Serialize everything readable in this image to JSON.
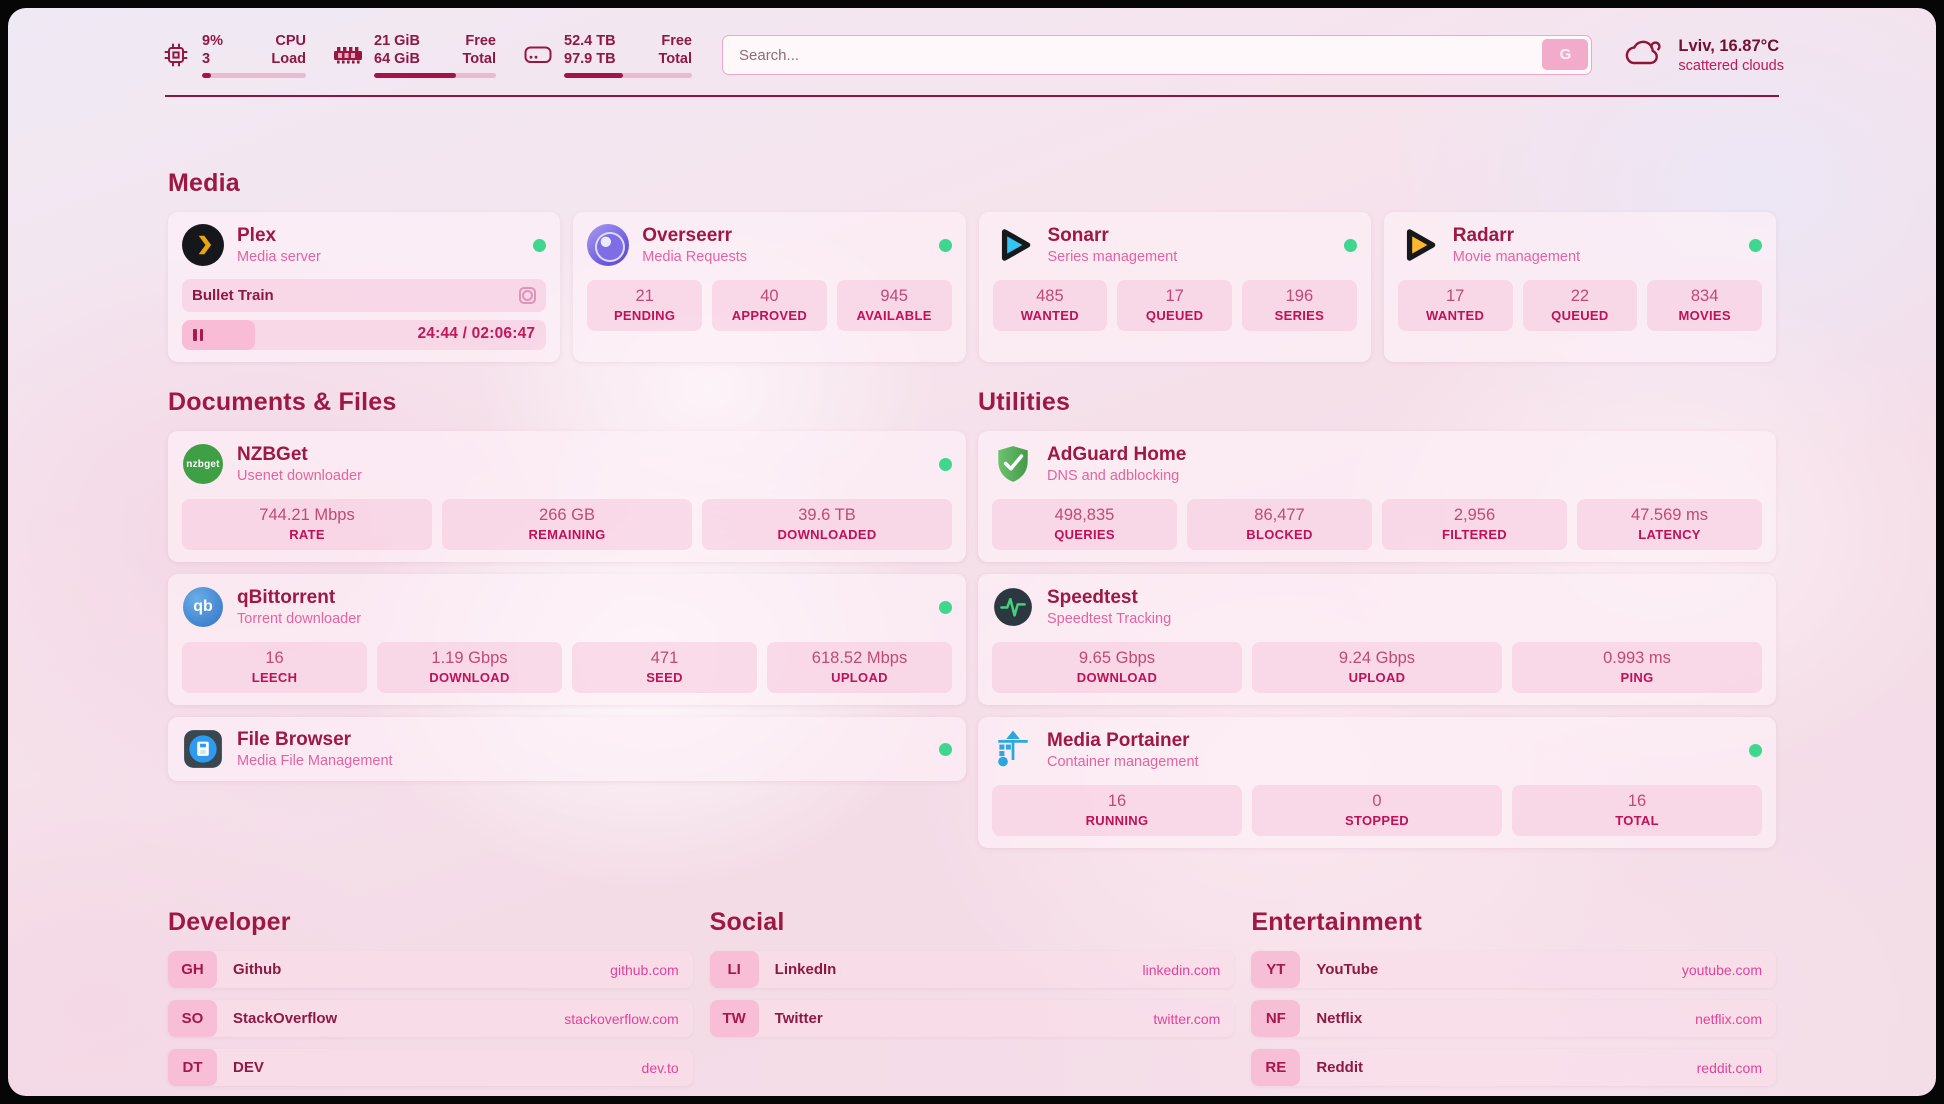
{
  "topbar": {
    "resources": [
      {
        "icon": "cpu-icon",
        "rows": [
          {
            "value": "9%",
            "label": "CPU"
          },
          {
            "value": "3",
            "label": "Load"
          }
        ],
        "progress": 9
      },
      {
        "icon": "memory-icon",
        "rows": [
          {
            "value": "21 GiB",
            "label": "Free"
          },
          {
            "value": "64 GiB",
            "label": "Total"
          }
        ],
        "progress": 67
      },
      {
        "icon": "disk-icon",
        "rows": [
          {
            "value": "52.4 TB",
            "label": "Free"
          },
          {
            "value": "97.9 TB",
            "label": "Total"
          }
        ],
        "progress": 46
      }
    ],
    "search": {
      "placeholder": "Search...",
      "button_label": "G"
    },
    "weather": {
      "icon": "cloud-icon",
      "location_temp": "Lviv, 16.87°C",
      "condition": "scattered clouds"
    }
  },
  "sections": {
    "media_title": "Media",
    "documents_title": "Documents & Files",
    "utilities_title": "Utilities"
  },
  "services": {
    "plex": {
      "title": "Plex",
      "subtitle": "Media server",
      "icon": "plex-icon",
      "status": "online",
      "now_playing": {
        "title": "Bullet Train",
        "time": "24:44 / 02:06:47",
        "progress_pct": 20
      }
    },
    "overseerr": {
      "title": "Overseerr",
      "subtitle": "Media Requests",
      "icon": "overseerr-icon",
      "status": "online",
      "stats": [
        {
          "value": "21",
          "label": "PENDING"
        },
        {
          "value": "40",
          "label": "APPROVED"
        },
        {
          "value": "945",
          "label": "AVAILABLE"
        }
      ]
    },
    "sonarr": {
      "title": "Sonarr",
      "subtitle": "Series management",
      "icon": "sonarr-icon",
      "status": "online",
      "stats": [
        {
          "value": "485",
          "label": "WANTED"
        },
        {
          "value": "17",
          "label": "QUEUED"
        },
        {
          "value": "196",
          "label": "SERIES"
        }
      ]
    },
    "radarr": {
      "title": "Radarr",
      "subtitle": "Movie management",
      "icon": "radarr-icon",
      "status": "online",
      "stats": [
        {
          "value": "17",
          "label": "WANTED"
        },
        {
          "value": "22",
          "label": "QUEUED"
        },
        {
          "value": "834",
          "label": "MOVIES"
        }
      ]
    },
    "nzbget": {
      "title": "NZBGet",
      "subtitle": "Usenet downloader",
      "icon": "nzbget-icon",
      "icon_text": "nzbget",
      "status": "online",
      "stats": [
        {
          "value": "744.21 Mbps",
          "label": "RATE"
        },
        {
          "value": "266 GB",
          "label": "REMAINING"
        },
        {
          "value": "39.6 TB",
          "label": "DOWNLOADED"
        }
      ]
    },
    "qbittorrent": {
      "title": "qBittorrent",
      "subtitle": "Torrent downloader",
      "icon": "qbittorrent-icon",
      "icon_text": "qb",
      "status": "online",
      "stats": [
        {
          "value": "16",
          "label": "LEECH"
        },
        {
          "value": "1.19 Gbps",
          "label": "DOWNLOAD"
        },
        {
          "value": "471",
          "label": "SEED"
        },
        {
          "value": "618.52 Mbps",
          "label": "UPLOAD"
        }
      ]
    },
    "filebrowser": {
      "title": "File Browser",
      "subtitle": "Media File Management",
      "icon": "filebrowser-icon",
      "status": "online"
    },
    "adguard": {
      "title": "AdGuard Home",
      "subtitle": "DNS and adblocking",
      "icon": "adguard-icon",
      "stats": [
        {
          "value": "498,835",
          "label": "QUERIES"
        },
        {
          "value": "86,477",
          "label": "BLOCKED"
        },
        {
          "value": "2,956",
          "label": "FILTERED"
        },
        {
          "value": "47.569 ms",
          "label": "LATENCY"
        }
      ]
    },
    "speedtest": {
      "title": "Speedtest",
      "subtitle": "Speedtest Tracking",
      "icon": "speedtest-icon",
      "stats": [
        {
          "value": "9.65 Gbps",
          "label": "DOWNLOAD"
        },
        {
          "value": "9.24 Gbps",
          "label": "UPLOAD"
        },
        {
          "value": "0.993 ms",
          "label": "PING"
        }
      ]
    },
    "portainer": {
      "title": "Media Portainer",
      "subtitle": "Container management",
      "icon": "portainer-icon",
      "status": "online",
      "stats": [
        {
          "value": "16",
          "label": "RUNNING"
        },
        {
          "value": "0",
          "label": "STOPPED"
        },
        {
          "value": "16",
          "label": "TOTAL"
        }
      ]
    }
  },
  "bookmark_groups": [
    {
      "title": "Developer",
      "items": [
        {
          "abbr": "GH",
          "name": "Github",
          "url": "github.com"
        },
        {
          "abbr": "SO",
          "name": "StackOverflow",
          "url": "stackoverflow.com"
        },
        {
          "abbr": "DT",
          "name": "DEV",
          "url": "dev.to"
        }
      ]
    },
    {
      "title": "Social",
      "items": [
        {
          "abbr": "LI",
          "name": "LinkedIn",
          "url": "linkedin.com"
        },
        {
          "abbr": "TW",
          "name": "Twitter",
          "url": "twitter.com"
        }
      ]
    },
    {
      "title": "Entertainment",
      "items": [
        {
          "abbr": "YT",
          "name": "YouTube",
          "url": "youtube.com"
        },
        {
          "abbr": "NF",
          "name": "Netflix",
          "url": "netflix.com"
        },
        {
          "abbr": "RE",
          "name": "Reddit",
          "url": "reddit.com"
        }
      ]
    }
  ],
  "colors": {
    "accent_dark": "#9E1843",
    "subtitle_pink": "#E463A1",
    "stat_label": "#C01058",
    "status_online": "#3FD68F",
    "divider": "#8C1440",
    "progress_fill": "#A41348"
  }
}
